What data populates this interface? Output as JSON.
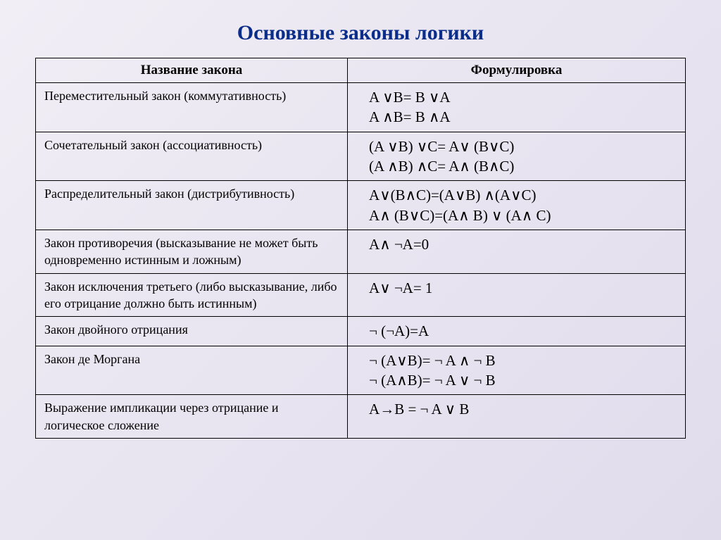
{
  "title": "Основные законы логики",
  "columns": [
    "Название закона",
    "Формулировка"
  ],
  "rows": [
    {
      "name": "Переместительный закон (коммутативность)",
      "formula": "A ∨B= B ∨A\nA ∧B= B ∧A"
    },
    {
      "name": "Сочетательный закон (ассоциативность)",
      "formula": "(A ∨B) ∨C= A∨ (B∨C)\n(A ∧B) ∧C= A∧ (B∧C)"
    },
    {
      "name": "Распределительный закон (дистрибутивность)",
      "formula": "A∨(B∧C)=(A∨B) ∧(A∨C)\nA∧ (B∨C)=(A∧ B) ∨ (A∧ C)"
    },
    {
      "name": "Закон противоречия (высказывание не может быть одновременно истинным и ложным)",
      "formula": "A∧ ¬A=0"
    },
    {
      "name": "Закон исключения третьего (либо высказывание, либо его отрицание должно быть истинным)",
      "formula": "A∨ ¬A= 1"
    },
    {
      "name": "Закон двойного отрицания",
      "formula": "¬ (¬A)=A"
    },
    {
      "name": "Закон де Моргана",
      "formula": "¬ (A∨B)= ¬ A ∧ ¬ B\n¬ (A∧B)= ¬ A ∨ ¬ B"
    },
    {
      "name": "Выражение импликации через отрицание и логическое сложение",
      "formula": "A→B = ¬ A ∨ B"
    }
  ]
}
